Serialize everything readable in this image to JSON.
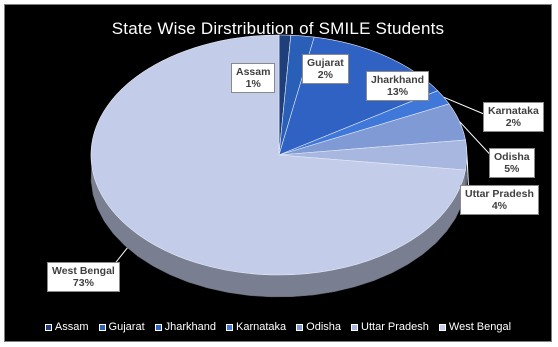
{
  "chart_data": {
    "type": "pie",
    "title": "State Wise Dirstribution of SMILE Students",
    "legend_position": "bottom",
    "slices": [
      {
        "label": "Assam",
        "percent_label": "1%",
        "value": 1,
        "color": "#1f3f7a"
      },
      {
        "label": "Gujarat",
        "percent_label": "2%",
        "value": 2,
        "color": "#2a5fb8"
      },
      {
        "label": "Jharkhand",
        "percent_label": "13%",
        "value": 13,
        "color": "#2f62c2"
      },
      {
        "label": "Karnataka",
        "percent_label": "2%",
        "value": 2,
        "color": "#3f78d8"
      },
      {
        "label": "Odisha",
        "percent_label": "5%",
        "value": 5,
        "color": "#7f9ad4"
      },
      {
        "label": "Uttar Pradesh",
        "percent_label": "4%",
        "value": 4,
        "color": "#a7b7e0"
      },
      {
        "label": "West Bengal",
        "percent_label": "73%",
        "value": 73,
        "color": "#c3cde9"
      }
    ]
  }
}
